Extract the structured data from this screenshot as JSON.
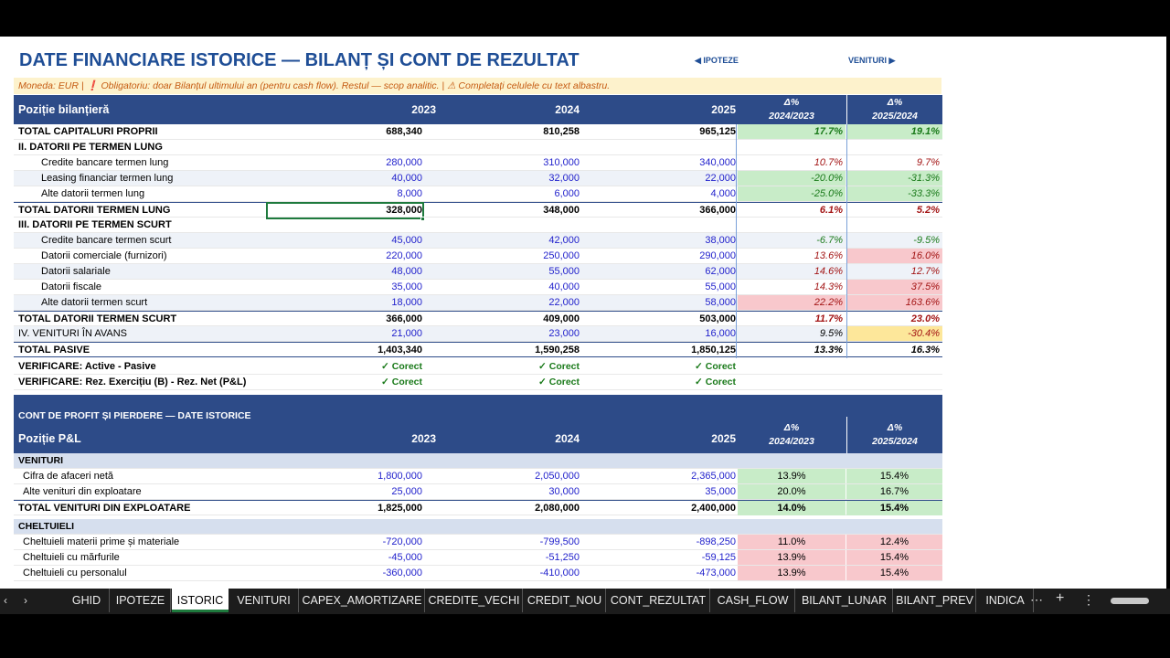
{
  "sheet": {
    "title": "DATE FINANCIARE ISTORICE — BILANȚ ȘI CONT DE REZULTAT",
    "nav_prev": "◀ IPOTEZE",
    "nav_next": "VENITURI ▶",
    "note": "Moneda: EUR |  ❗ Obligatoriu: doar Bilanțul ultimului an (pentru cash flow). Restul — scop analitic.  |  ⚠ Completați celulele cu text albastru."
  },
  "balance": {
    "header": {
      "label": "Poziție bilanțieră",
      "y1": "2023",
      "y2": "2024",
      "y3": "2025",
      "d1a": "Δ%",
      "d1b": "2024/2023",
      "d2a": "Δ%",
      "d2b": "2025/2024"
    },
    "rows": [
      {
        "label": "TOTAL CAPITALURI PROPRII",
        "y1": "688,340",
        "y2": "810,258",
        "y3": "965,125",
        "d1": "17.7%",
        "d2": "19.1%"
      },
      {
        "label": "II. DATORII PE TERMEN LUNG"
      },
      {
        "label": "Credite bancare termen lung",
        "y1": "280,000",
        "y2": "310,000",
        "y3": "340,000",
        "d1": "10.7%",
        "d2": "9.7%"
      },
      {
        "label": "Leasing financiar termen lung",
        "y1": "40,000",
        "y2": "32,000",
        "y3": "22,000",
        "d1": "-20.0%",
        "d2": "-31.3%"
      },
      {
        "label": "Alte datorii termen lung",
        "y1": "8,000",
        "y2": "6,000",
        "y3": "4,000",
        "d1": "-25.0%",
        "d2": "-33.3%"
      },
      {
        "label": "TOTAL DATORII TERMEN LUNG",
        "y1": "328,000",
        "y2": "348,000",
        "y3": "366,000",
        "d1": "6.1%",
        "d2": "5.2%"
      },
      {
        "label": "III. DATORII PE TERMEN SCURT"
      },
      {
        "label": "Credite bancare termen scurt",
        "y1": "45,000",
        "y2": "42,000",
        "y3": "38,000",
        "d1": "-6.7%",
        "d2": "-9.5%"
      },
      {
        "label": "Datorii comerciale (furnizori)",
        "y1": "220,000",
        "y2": "250,000",
        "y3": "290,000",
        "d1": "13.6%",
        "d2": "16.0%"
      },
      {
        "label": "Datorii salariale",
        "y1": "48,000",
        "y2": "55,000",
        "y3": "62,000",
        "d1": "14.6%",
        "d2": "12.7%"
      },
      {
        "label": "Datorii fiscale",
        "y1": "35,000",
        "y2": "40,000",
        "y3": "55,000",
        "d1": "14.3%",
        "d2": "37.5%"
      },
      {
        "label": "Alte datorii termen scurt",
        "y1": "18,000",
        "y2": "22,000",
        "y3": "58,000",
        "d1": "22.2%",
        "d2": "163.6%"
      },
      {
        "label": "TOTAL DATORII TERMEN SCURT",
        "y1": "366,000",
        "y2": "409,000",
        "y3": "503,000",
        "d1": "11.7%",
        "d2": "23.0%"
      },
      {
        "label": "IV. VENITURI ÎN AVANS",
        "y1": "21,000",
        "y2": "23,000",
        "y3": "16,000",
        "d1": "9.5%",
        "d2": "-30.4%"
      },
      {
        "label": "TOTAL PASIVE",
        "y1": "1,403,340",
        "y2": "1,590,258",
        "y3": "1,850,125",
        "d1": "13.3%",
        "d2": "16.3%"
      },
      {
        "label": "VERIFICARE: Active - Pasive",
        "y1": "✓ Corect",
        "y2": "✓ Corect",
        "y3": "✓ Corect"
      },
      {
        "label": "VERIFICARE: Rez. Exercițiu (B) - Rez. Net (P&L)",
        "y1": "✓ Corect",
        "y2": "✓ Corect",
        "y3": "✓ Corect"
      }
    ]
  },
  "pl": {
    "header": {
      "section": "CONT DE PROFIT ȘI PIERDERE — DATE ISTORICE",
      "label": "Poziție P&L",
      "y1": "2023",
      "y2": "2024",
      "y3": "2025",
      "d1a": "Δ%",
      "d1b": "2024/2023",
      "d2a": "Δ%",
      "d2b": "2025/2024"
    },
    "rows": [
      {
        "label": "VENITURI"
      },
      {
        "label": "Cifra de afaceri netă",
        "y1": "1,800,000",
        "y2": "2,050,000",
        "y3": "2,365,000",
        "d1": "13.9%",
        "d2": "15.4%"
      },
      {
        "label": "Alte venituri din exploatare",
        "y1": "25,000",
        "y2": "30,000",
        "y3": "35,000",
        "d1": "20.0%",
        "d2": "16.7%"
      },
      {
        "label": "TOTAL VENITURI DIN EXPLOATARE",
        "y1": "1,825,000",
        "y2": "2,080,000",
        "y3": "2,400,000",
        "d1": "14.0%",
        "d2": "15.4%"
      },
      {
        "label": "CHELTUIELI"
      },
      {
        "label": "Cheltuieli materii prime și materiale",
        "y1": "-720,000",
        "y2": "-799,500",
        "y3": "-898,250",
        "d1": "11.0%",
        "d2": "12.4%"
      },
      {
        "label": "Cheltuieli cu mărfurile",
        "y1": "-45,000",
        "y2": "-51,250",
        "y3": "-59,125",
        "d1": "13.9%",
        "d2": "15.4%"
      },
      {
        "label": "Cheltuieli cu personalul",
        "y1": "-360,000",
        "y2": "-410,000",
        "y3": "-473,000",
        "d1": "13.9%",
        "d2": "15.4%"
      }
    ]
  },
  "tabs": [
    "GHID",
    "IPOTEZE",
    "ISTORIC",
    "VENITURI",
    "CAPEX_AMORTIZARE",
    "CREDITE_VECHI",
    "CREDIT_NOU",
    "CONT_REZULTAT",
    "CASH_FLOW",
    "BILANT_LUNAR",
    "BILANT_PREV",
    "INDICA"
  ],
  "tabbar": {
    "prev": "‹",
    "next": "›",
    "more": "⋯",
    "add": "+",
    "menu": "⋮"
  }
}
